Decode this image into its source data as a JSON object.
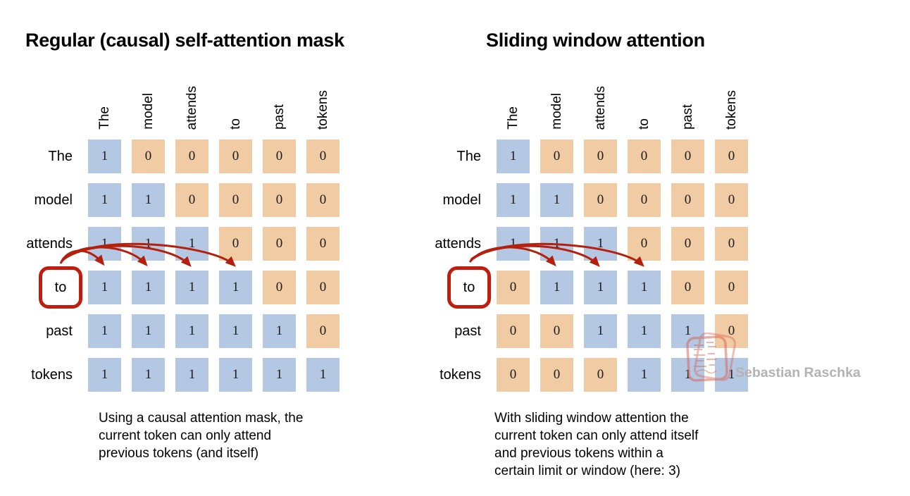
{
  "colors": {
    "attend": "#b4c7e3",
    "masked": "#f0cba3",
    "arrow": "#b5200c",
    "box": "#bf1d0d",
    "watermark": "#b3b3b3"
  },
  "tokens": [
    "The",
    "model",
    "attends",
    "to",
    "past",
    "tokens"
  ],
  "watermark": {
    "text": "Sebastian Raschka"
  },
  "panels": [
    {
      "id": "causal",
      "title": "Regular (causal) self-attention mask",
      "highlighted_token": "to",
      "highlighted_row": 3,
      "matrix": [
        [
          1,
          0,
          0,
          0,
          0,
          0
        ],
        [
          1,
          1,
          0,
          0,
          0,
          0
        ],
        [
          1,
          1,
          1,
          0,
          0,
          0
        ],
        [
          1,
          1,
          1,
          1,
          0,
          0
        ],
        [
          1,
          1,
          1,
          1,
          1,
          0
        ],
        [
          1,
          1,
          1,
          1,
          1,
          1
        ]
      ],
      "arrow_target_columns": [
        0,
        1,
        2,
        3
      ],
      "caption_lines": [
        "Using a causal attention mask, the",
        "current token can only attend",
        "previous tokens (and itself)"
      ]
    },
    {
      "id": "sliding",
      "title": "Sliding window attention",
      "highlighted_token": "to",
      "highlighted_row": 3,
      "matrix": [
        [
          1,
          0,
          0,
          0,
          0,
          0
        ],
        [
          1,
          1,
          0,
          0,
          0,
          0
        ],
        [
          1,
          1,
          1,
          0,
          0,
          0
        ],
        [
          0,
          1,
          1,
          1,
          0,
          0
        ],
        [
          0,
          0,
          1,
          1,
          1,
          0
        ],
        [
          0,
          0,
          0,
          1,
          1,
          1
        ]
      ],
      "arrow_target_columns": [
        1,
        2,
        3
      ],
      "caption_lines": [
        "With sliding window attention the",
        "current token can only attend itself",
        "and previous tokens within a",
        "certain limit or window (here: 3)"
      ]
    }
  ]
}
